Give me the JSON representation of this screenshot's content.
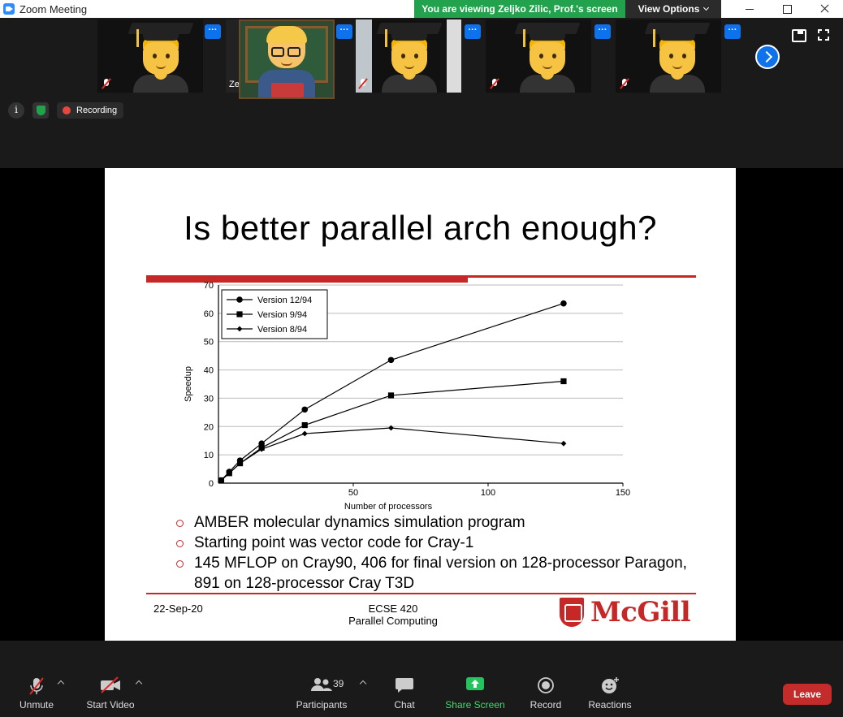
{
  "window": {
    "title": "Zoom Meeting"
  },
  "banner": {
    "viewing_text": "You are viewing Zeljko Zilic, Prof.'s screen",
    "view_options_label": "View Options"
  },
  "gallery": {
    "participants": [
      {
        "id": "student-1",
        "icon": "student-emoji",
        "muted": true
      },
      {
        "id": "teacher",
        "icon": "teacher-emoji",
        "name_fragment": "Ze"
      },
      {
        "id": "student-2",
        "icon": "student-emoji",
        "muted": true
      },
      {
        "id": "student-3",
        "icon": "student-emoji",
        "muted": true
      },
      {
        "id": "student-4",
        "icon": "student-emoji",
        "muted": true
      }
    ],
    "more_options_glyph": "···"
  },
  "status": {
    "recording_label": "Recording"
  },
  "slide": {
    "title": "Is better parallel arch enough?",
    "bullets": [
      "AMBER molecular dynamics simulation program",
      "Starting point was vector code for Cray-1",
      "145 MFLOP on Cray90, 406 for final version on 128-processor Paragon, 891 on 128-processor Cray T3D"
    ],
    "footer_date": "22-Sep-20",
    "footer_course_line1": "ECSE 420",
    "footer_course_line2": "Parallel Computing",
    "logo_text": "McGill"
  },
  "chart_data": {
    "type": "line",
    "xlabel": "Number of processors",
    "ylabel": "Speedup",
    "xlim": [
      0,
      150
    ],
    "ylim": [
      0,
      70
    ],
    "xticks": [
      50,
      100,
      150
    ],
    "yticks": [
      0,
      10,
      20,
      30,
      40,
      50,
      60,
      70
    ],
    "grid": "horizontal",
    "legend_position": "top-left",
    "series": [
      {
        "name": "Version 12/94",
        "marker": "circle",
        "x": [
          1,
          4,
          8,
          16,
          32,
          64,
          128
        ],
        "y": [
          1,
          4,
          8,
          14,
          26,
          43.5,
          63.5
        ]
      },
      {
        "name": "Version 9/94",
        "marker": "square",
        "x": [
          1,
          4,
          8,
          16,
          32,
          64,
          128
        ],
        "y": [
          1,
          3.5,
          7,
          12.5,
          20.5,
          31,
          36
        ]
      },
      {
        "name": "Version 8/94",
        "marker": "diamond",
        "x": [
          1,
          4,
          8,
          16,
          32,
          64,
          128
        ],
        "y": [
          1,
          3.5,
          7,
          12,
          17.5,
          19.5,
          14
        ]
      }
    ]
  },
  "toolbar": {
    "unmute_label": "Unmute",
    "start_video_label": "Start Video",
    "participants_label": "Participants",
    "participants_count": "39",
    "chat_label": "Chat",
    "share_screen_label": "Share Screen",
    "record_label": "Record",
    "reactions_label": "Reactions",
    "leave_label": "Leave"
  }
}
